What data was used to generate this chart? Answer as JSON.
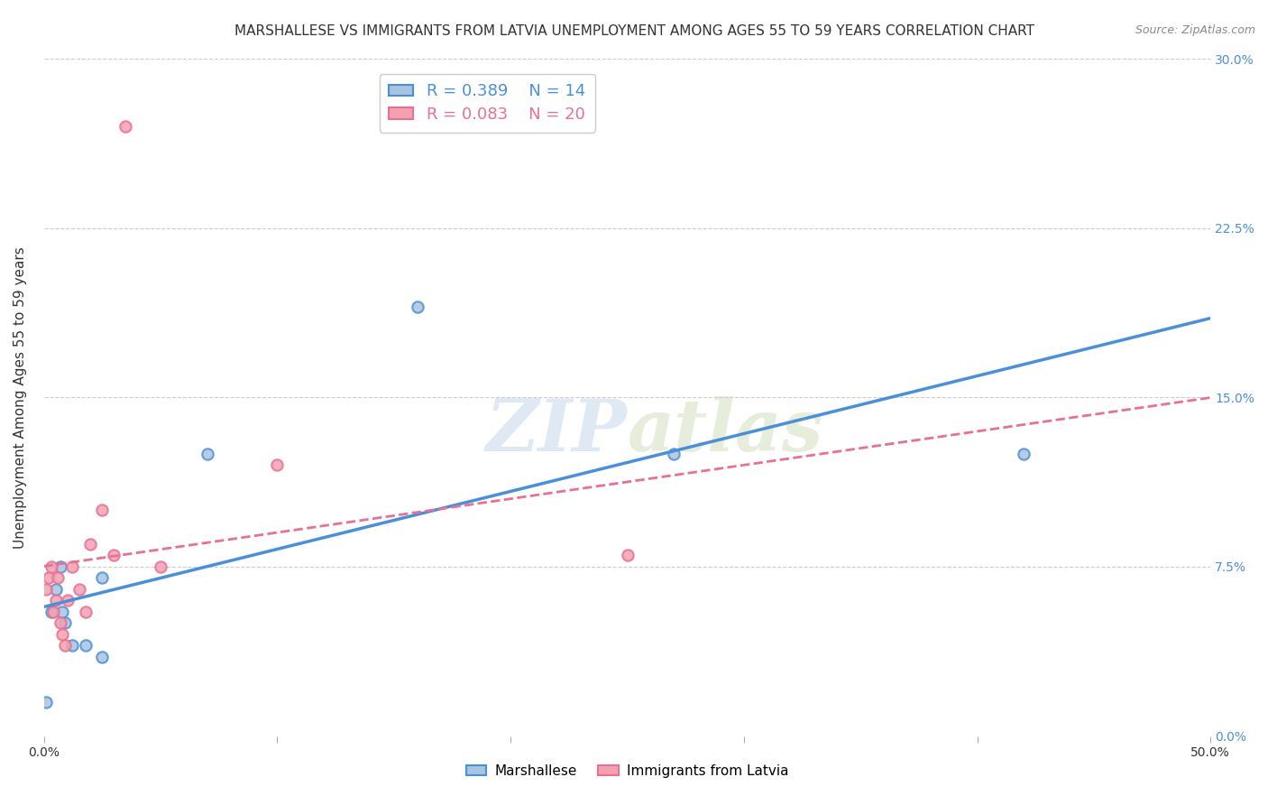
{
  "title": "MARSHALLESE VS IMMIGRANTS FROM LATVIA UNEMPLOYMENT AMONG AGES 55 TO 59 YEARS CORRELATION CHART",
  "source": "Source: ZipAtlas.com",
  "ylabel": "Unemployment Among Ages 55 to 59 years",
  "xlim": [
    0.0,
    0.5
  ],
  "ylim": [
    0.0,
    0.3
  ],
  "xticks": [
    0.0,
    0.1,
    0.2,
    0.3,
    0.4,
    0.5
  ],
  "yticks": [
    0.0,
    0.075,
    0.15,
    0.225,
    0.3
  ],
  "ytick_labels_right": [
    "0.0%",
    "7.5%",
    "15.0%",
    "22.5%",
    "30.0%"
  ],
  "marshallese_color": "#a8c4e0",
  "latvia_color": "#f4a0b0",
  "marshallese_line_color": "#4a90d9",
  "latvia_line_color": "#e87090",
  "watermark_zip": "ZIP",
  "watermark_atlas": "atlas",
  "legend_r_marshallese": "R = 0.389",
  "legend_n_marshallese": "N = 14",
  "legend_r_latvia": "R = 0.083",
  "legend_n_latvia": "N = 20",
  "marshallese_x": [
    0.001,
    0.003,
    0.005,
    0.007,
    0.008,
    0.009,
    0.012,
    0.018,
    0.025,
    0.025,
    0.07,
    0.16,
    0.27,
    0.42
  ],
  "marshallese_y": [
    0.015,
    0.055,
    0.065,
    0.075,
    0.055,
    0.05,
    0.04,
    0.04,
    0.07,
    0.035,
    0.125,
    0.19,
    0.125,
    0.125
  ],
  "latvia_x": [
    0.001,
    0.002,
    0.003,
    0.004,
    0.005,
    0.006,
    0.007,
    0.008,
    0.009,
    0.01,
    0.012,
    0.015,
    0.018,
    0.02,
    0.025,
    0.03,
    0.035,
    0.05,
    0.1,
    0.25
  ],
  "latvia_y": [
    0.065,
    0.07,
    0.075,
    0.055,
    0.06,
    0.07,
    0.05,
    0.045,
    0.04,
    0.06,
    0.075,
    0.065,
    0.055,
    0.085,
    0.1,
    0.08,
    0.27,
    0.075,
    0.12,
    0.08
  ],
  "background_color": "#ffffff",
  "grid_color": "#cccccc",
  "title_fontsize": 11,
  "axis_label_fontsize": 11,
  "tick_fontsize": 10,
  "marker_size": 80
}
